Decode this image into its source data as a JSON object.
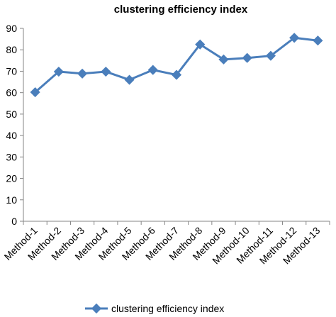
{
  "chart_data": {
    "type": "line",
    "title": "clustering efficiency index",
    "xlabel": "",
    "ylabel": "",
    "categories": [
      "Method-1",
      "Method-2",
      "Method-3",
      "Method-4",
      "Method-5",
      "Method-6",
      "Method-7",
      "Method-8",
      "Method-9",
      "Method-10",
      "Method-11",
      "Method-12",
      "Method-13"
    ],
    "series": [
      {
        "name": "clustering efficiency index",
        "values": [
          60.2,
          69.8,
          68.9,
          69.8,
          66.0,
          70.6,
          68.3,
          82.5,
          75.5,
          76.2,
          77.2,
          85.6,
          84.3
        ]
      }
    ],
    "ylim": [
      0,
      90
    ],
    "yticks": [
      0,
      10,
      20,
      30,
      40,
      50,
      60,
      70,
      80,
      90
    ],
    "grid": false,
    "legend": "bottom",
    "colors": {
      "series": "#4a7ebb",
      "axis": "#868686"
    }
  }
}
